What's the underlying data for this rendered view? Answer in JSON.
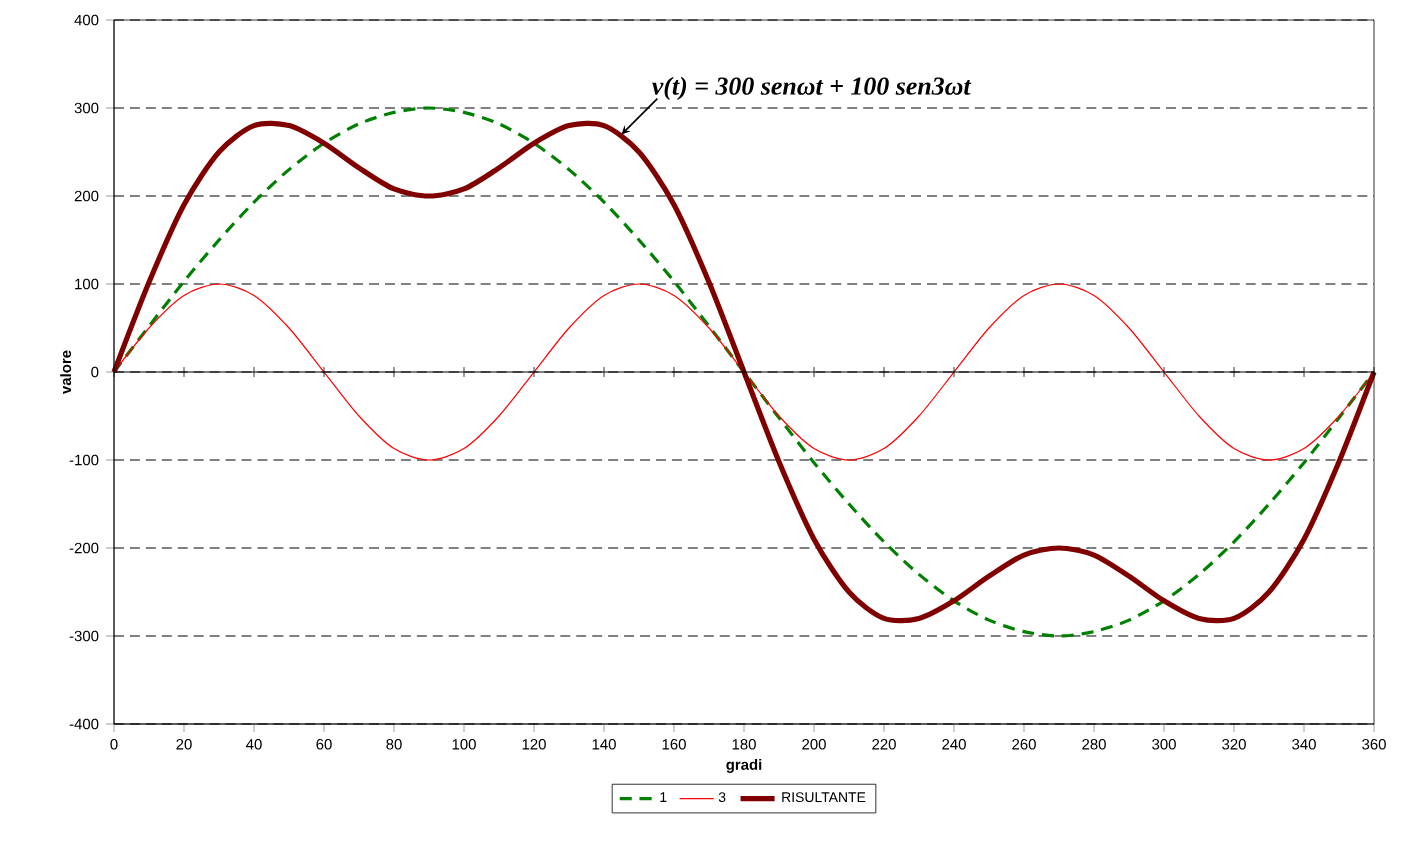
{
  "chart_data": {
    "type": "line",
    "xlabel": "gradi",
    "ylabel": "valore",
    "x": [
      0,
      10,
      20,
      30,
      40,
      50,
      60,
      70,
      80,
      90,
      100,
      110,
      120,
      130,
      140,
      150,
      160,
      170,
      180,
      190,
      200,
      210,
      220,
      230,
      240,
      250,
      260,
      270,
      280,
      290,
      300,
      310,
      320,
      330,
      340,
      350,
      360
    ],
    "series": [
      {
        "name": "1",
        "color": "#008000",
        "line_style": "dashed",
        "values": [
          0,
          52,
          103,
          150,
          193,
          230,
          260,
          282,
          295,
          300,
          295,
          282,
          260,
          230,
          193,
          150,
          103,
          52,
          0,
          -52,
          -103,
          -150,
          -193,
          -230,
          -260,
          -282,
          -295,
          -300,
          -295,
          -282,
          -260,
          -230,
          -193,
          -150,
          -103,
          -52,
          0
        ]
      },
      {
        "name": "3",
        "color": "#ff0000",
        "line_style": "solid",
        "values": [
          0,
          50,
          87,
          100,
          87,
          50,
          0,
          -50,
          -87,
          -100,
          -87,
          -50,
          0,
          50,
          87,
          100,
          87,
          50,
          0,
          -50,
          -87,
          -100,
          -87,
          -50,
          0,
          50,
          87,
          100,
          87,
          50,
          0,
          -50,
          -87,
          -100,
          -87,
          -50,
          0
        ]
      },
      {
        "name": "RISULTANTE",
        "color": "#800000",
        "line_style": "solid",
        "values": [
          0,
          102,
          190,
          250,
          280,
          280,
          260,
          232,
          208,
          200,
          208,
          232,
          260,
          280,
          280,
          250,
          190,
          102,
          0,
          -102,
          -190,
          -250,
          -280,
          -280,
          -260,
          -232,
          -208,
          -200,
          -208,
          -232,
          -260,
          -280,
          -280,
          -250,
          -190,
          -102,
          0
        ]
      }
    ],
    "xlim": [
      0,
      360
    ],
    "xticks": [
      0,
      20,
      40,
      60,
      80,
      100,
      120,
      140,
      160,
      180,
      200,
      220,
      240,
      260,
      280,
      300,
      320,
      340,
      360
    ],
    "ylim": [
      -400,
      400
    ],
    "yticks": [
      -400,
      -300,
      -200,
      -100,
      0,
      100,
      200,
      300,
      400
    ],
    "grid": "y",
    "legend": "bottom",
    "marker": "none",
    "annotations": [
      {
        "text": "v(t) = 300 senωt + 100 sen3ωt",
        "x": 145,
        "y": 270
      }
    ]
  }
}
